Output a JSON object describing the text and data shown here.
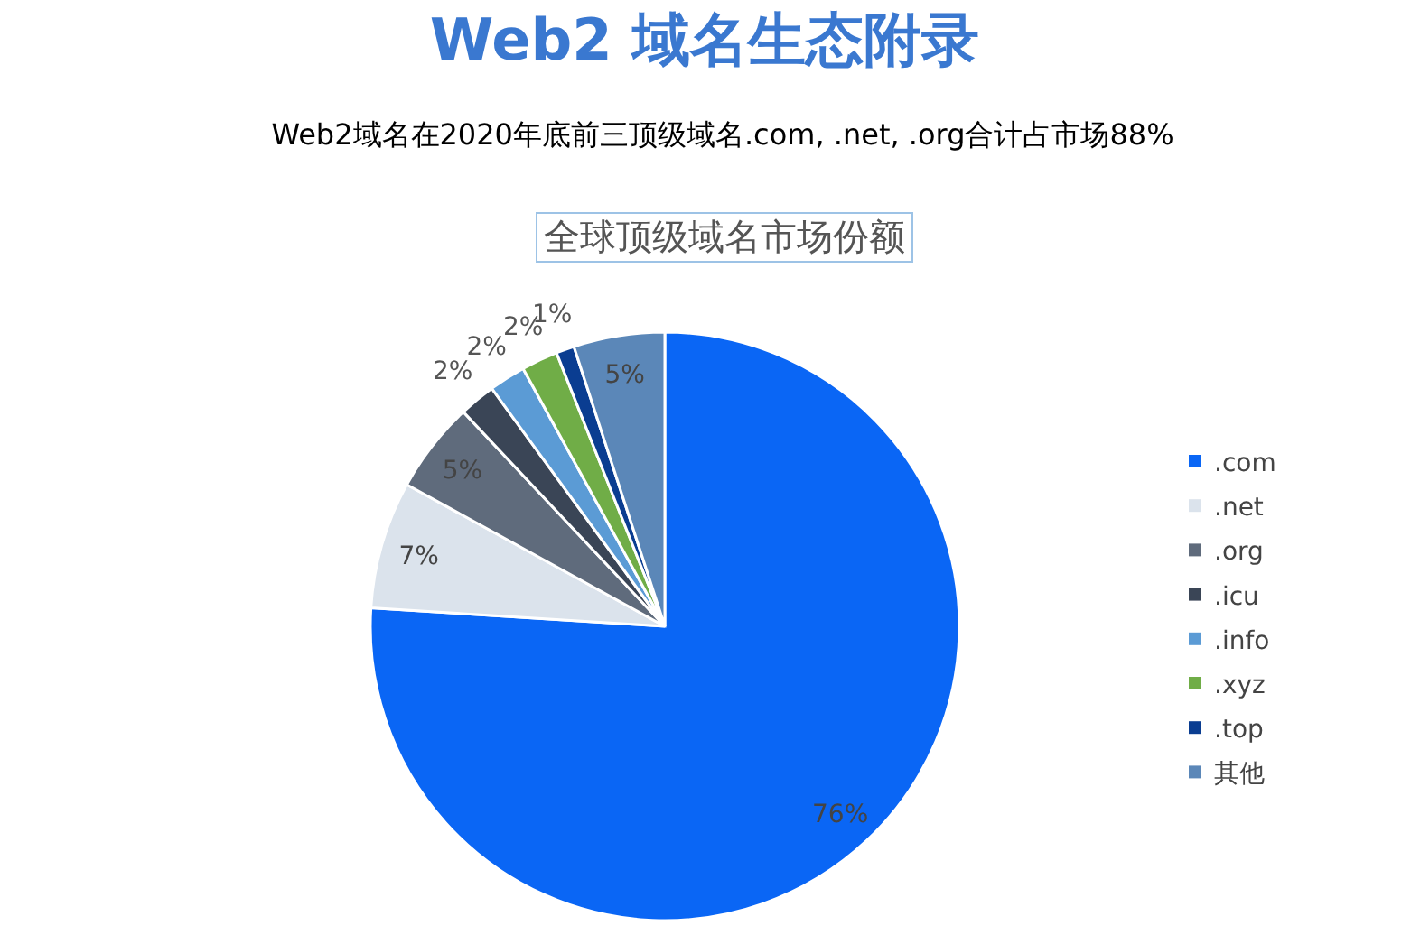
{
  "chart_data": {
    "type": "pie",
    "title": "Web2 域名生态附录",
    "subtitle": "Web2域名在2020年底前三顶级域名.com, .net, .org合计占市场88%",
    "annotations": [
      "全球顶级域名市场份额"
    ],
    "categories": [
      ".com",
      ".net",
      ".org",
      ".icu",
      ".info",
      ".xyz",
      ".top",
      "其他"
    ],
    "values": [
      76,
      7,
      5,
      2,
      2,
      2,
      1,
      5
    ],
    "colors": [
      "#0a66f5",
      "#dbe3ec",
      "#5f6b7c",
      "#3a4556",
      "#5b9bd5",
      "#70ad47",
      "#0a3d91",
      "#5b87b8"
    ],
    "value_labels": [
      "76%",
      "7%",
      "5%",
      "2%",
      "2%",
      "2%",
      "1%",
      "5%"
    ],
    "legend": "right"
  }
}
